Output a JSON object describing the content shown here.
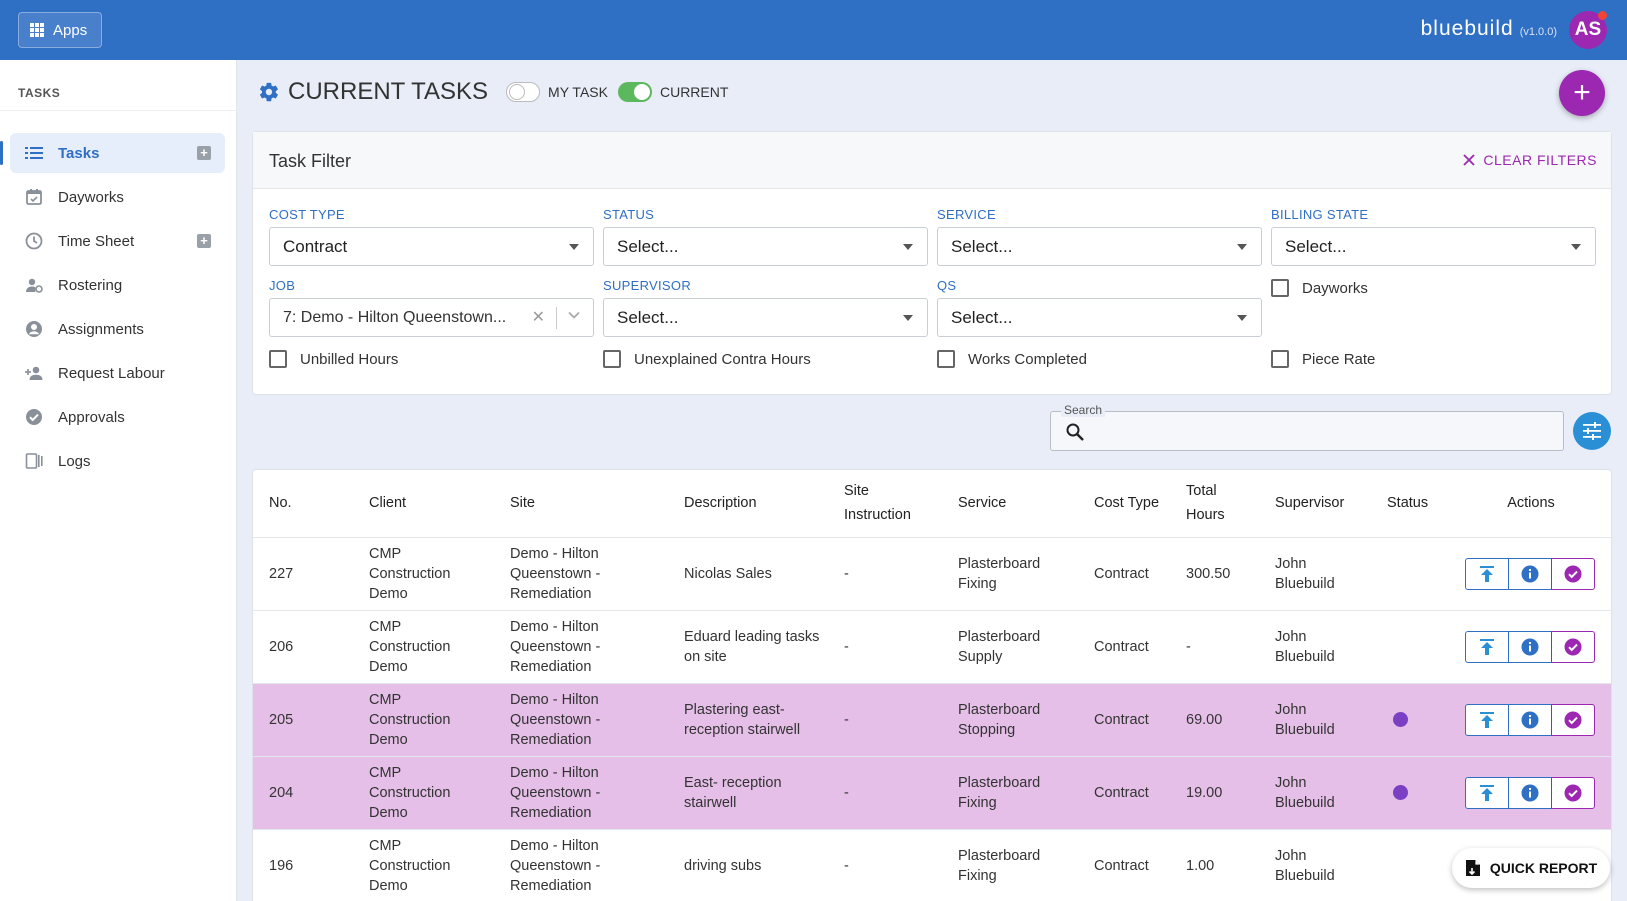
{
  "topbar": {
    "apps_label": "Apps",
    "brand": "bluebuild",
    "version": "(v1.0.0)",
    "avatar_initials": "AS"
  },
  "sidebar": {
    "heading": "TASKS",
    "items": [
      {
        "label": "Tasks",
        "icon": "list-icon",
        "active": true,
        "has_add": true
      },
      {
        "label": "Dayworks",
        "icon": "calendar-icon",
        "has_add": false
      },
      {
        "label": "Time Sheet",
        "icon": "clock-icon",
        "has_add": true
      },
      {
        "label": "Rostering",
        "icon": "people-gear-icon",
        "has_add": false
      },
      {
        "label": "Assignments",
        "icon": "account-circle-icon",
        "has_add": false
      },
      {
        "label": "Request Labour",
        "icon": "person-add-icon",
        "has_add": false
      },
      {
        "label": "Approvals",
        "icon": "check-circle-icon",
        "has_add": false
      },
      {
        "label": "Logs",
        "icon": "logs-icon",
        "has_add": false
      }
    ]
  },
  "header": {
    "title": "CURRENT TASKS",
    "toggle_my_task": {
      "label": "MY TASK",
      "on": false
    },
    "toggle_current": {
      "label": "CURRENT",
      "on": true
    }
  },
  "filter": {
    "title": "Task Filter",
    "clear_label": "CLEAR FILTERS",
    "cost_type": {
      "label": "COST TYPE",
      "value": "Contract"
    },
    "status": {
      "label": "STATUS",
      "value": "Select..."
    },
    "service": {
      "label": "SERVICE",
      "value": "Select..."
    },
    "billing_state": {
      "label": "BILLING STATE",
      "value": "Select..."
    },
    "job": {
      "label": "JOB",
      "value": "7: Demo - Hilton Queenstown..."
    },
    "supervisor": {
      "label": "SUPERVISOR",
      "value": "Select..."
    },
    "qs": {
      "label": "QS",
      "value": "Select..."
    },
    "checkboxes": {
      "dayworks": "Dayworks",
      "unbilled_hours": "Unbilled Hours",
      "unexplained_contra": "Unexplained Contra Hours",
      "works_completed": "Works Completed",
      "piece_rate": "Piece Rate"
    }
  },
  "search": {
    "label": "Search",
    "placeholder": ""
  },
  "table": {
    "headers": {
      "no": "No.",
      "client": "Client",
      "site": "Site",
      "description": "Description",
      "site_instruction": "Site Instruction",
      "service": "Service",
      "cost_type": "Cost Type",
      "total_hours": "Total Hours",
      "supervisor": "Supervisor",
      "status": "Status",
      "actions": "Actions"
    },
    "rows": [
      {
        "no": "227",
        "client": "CMP Construction Demo",
        "site": "Demo - Hilton Queenstown - Remediation",
        "description": "Nicolas Sales",
        "site_instruction": "-",
        "service": "Plasterboard Fixing",
        "cost_type": "Contract",
        "total_hours": "300.50",
        "supervisor": "John Bluebuild",
        "highlight": false,
        "status_dot": false
      },
      {
        "no": "206",
        "client": "CMP Construction Demo",
        "site": "Demo - Hilton Queenstown - Remediation",
        "description": "Eduard leading tasks on site",
        "site_instruction": "-",
        "service": "Plasterboard Supply",
        "cost_type": "Contract",
        "total_hours": "-",
        "supervisor": "John Bluebuild",
        "highlight": false,
        "status_dot": false
      },
      {
        "no": "205",
        "client": "CMP Construction Demo",
        "site": "Demo - Hilton Queenstown - Remediation",
        "description": "Plastering east-reception stairwell",
        "site_instruction": "-",
        "service": "Plasterboard Stopping",
        "cost_type": "Contract",
        "total_hours": "69.00",
        "supervisor": "John Bluebuild",
        "highlight": true,
        "status_dot": true
      },
      {
        "no": "204",
        "client": "CMP Construction Demo",
        "site": "Demo - Hilton Queenstown - Remediation",
        "description": "East- reception stairwell",
        "site_instruction": "-",
        "service": "Plasterboard Fixing",
        "cost_type": "Contract",
        "total_hours": "19.00",
        "supervisor": "John Bluebuild",
        "highlight": true,
        "status_dot": true
      },
      {
        "no": "196",
        "client": "CMP Construction Demo",
        "site": "Demo - Hilton Queenstown - Remediation",
        "description": "driving subs",
        "site_instruction": "-",
        "service": "Plasterboard Fixing",
        "cost_type": "Contract",
        "total_hours": "1.00",
        "supervisor": "John Bluebuild",
        "highlight": false,
        "status_dot": false
      }
    ]
  },
  "quick_report": {
    "label": "QUICK REPORT"
  },
  "colors": {
    "primary": "#2f6fc4",
    "accent": "#9c27b0",
    "highlight_row": "#e5bfe8",
    "toggle_on": "#5cb85c"
  }
}
